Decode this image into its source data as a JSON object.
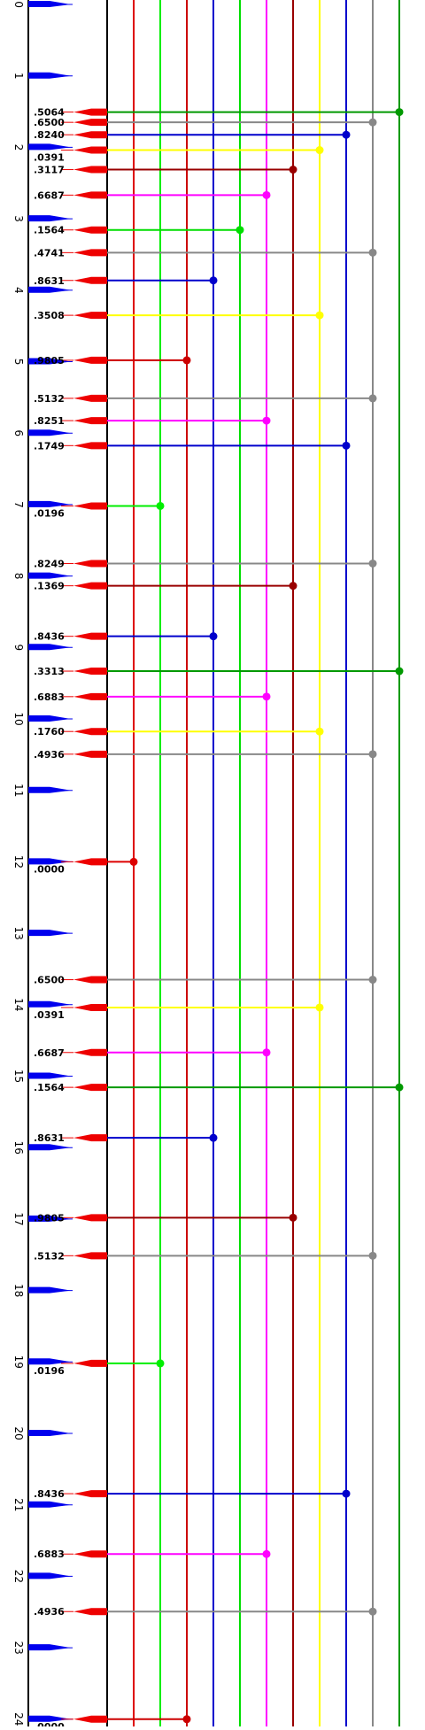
{
  "scale_labels": [
    "0",
    "1",
    "2",
    "3",
    "4",
    "5",
    "6",
    "7",
    "8",
    "9",
    "10",
    "11",
    "12",
    "13",
    "14",
    "15",
    "16",
    "17",
    "18",
    "19",
    "20",
    "21",
    "22",
    "23",
    "24"
  ],
  "columns": [
    {
      "color": "#dd0000"
    },
    {
      "color": "#00ee00"
    },
    {
      "color": "#cc0000"
    },
    {
      "color": "#0000cc"
    },
    {
      "color": "#00dd00"
    },
    {
      "color": "#ff00ff"
    },
    {
      "color": "#990000"
    },
    {
      "color": "#ffff00"
    },
    {
      "color": "#0000cc"
    },
    {
      "color": "#888888"
    },
    {
      "color": "#009900"
    }
  ],
  "events": [
    {
      "label": ".5064",
      "pos": 1.5064,
      "col": 10
    },
    {
      "label": ".6500",
      "pos": 1.65,
      "col": 9
    },
    {
      "label": ".8240",
      "pos": 1.824,
      "col": 8
    },
    {
      "label": ".0391",
      "pos": 2.0391,
      "col": 7
    },
    {
      "label": ".3117",
      "pos": 2.3117,
      "col": 6
    },
    {
      "label": ".6687",
      "pos": 2.6687,
      "col": 5
    },
    {
      "label": ".1564",
      "pos": 3.1564,
      "col": 4
    },
    {
      "label": ".4741",
      "pos": 3.4741,
      "col": 9
    },
    {
      "label": ".8631",
      "pos": 3.8631,
      "col": 3
    },
    {
      "label": ".3508",
      "pos": 4.3508,
      "col": 7
    },
    {
      "label": ".9805",
      "pos": 4.9805,
      "col": 2
    },
    {
      "label": ".5132",
      "pos": 5.5132,
      "col": 9
    },
    {
      "label": ".8251",
      "pos": 5.8251,
      "col": 5
    },
    {
      "label": ".1749",
      "pos": 6.1749,
      "col": 8
    },
    {
      "label": ".0196",
      "pos": 7.0196,
      "col": 1
    },
    {
      "label": ".8249",
      "pos": 7.8249,
      "col": 9
    },
    {
      "label": ".1369",
      "pos": 8.1369,
      "col": 6
    },
    {
      "label": ".8436",
      "pos": 8.8436,
      "col": 3
    },
    {
      "label": ".3313",
      "pos": 9.3313,
      "col": 10
    },
    {
      "label": ".6883",
      "pos": 9.6883,
      "col": 5
    },
    {
      "label": ".1760",
      "pos": 10.176,
      "col": 7
    },
    {
      "label": ".4936",
      "pos": 10.4936,
      "col": 9
    },
    {
      "label": ".0000",
      "pos": 12.0,
      "col": 0
    },
    {
      "label": ".6500",
      "pos": 13.65,
      "col": 9
    },
    {
      "label": ".0391",
      "pos": 14.0391,
      "col": 7
    },
    {
      "label": ".6687",
      "pos": 14.6687,
      "col": 5
    },
    {
      "label": ".1564",
      "pos": 15.1564,
      "col": 10
    },
    {
      "label": ".8631",
      "pos": 15.8631,
      "col": 3
    },
    {
      "label": ".9805",
      "pos": 16.9805,
      "col": 6
    },
    {
      "label": ".5132",
      "pos": 17.5132,
      "col": 9
    },
    {
      "label": ".0196",
      "pos": 19.0196,
      "col": 1
    },
    {
      "label": ".8436",
      "pos": 20.8436,
      "col": 8
    },
    {
      "label": ".6883",
      "pos": 21.6883,
      "col": 5
    },
    {
      "label": ".4936",
      "pos": 22.4936,
      "col": 9
    },
    {
      "label": ".0000",
      "pos": 24.0,
      "col": 2
    }
  ]
}
